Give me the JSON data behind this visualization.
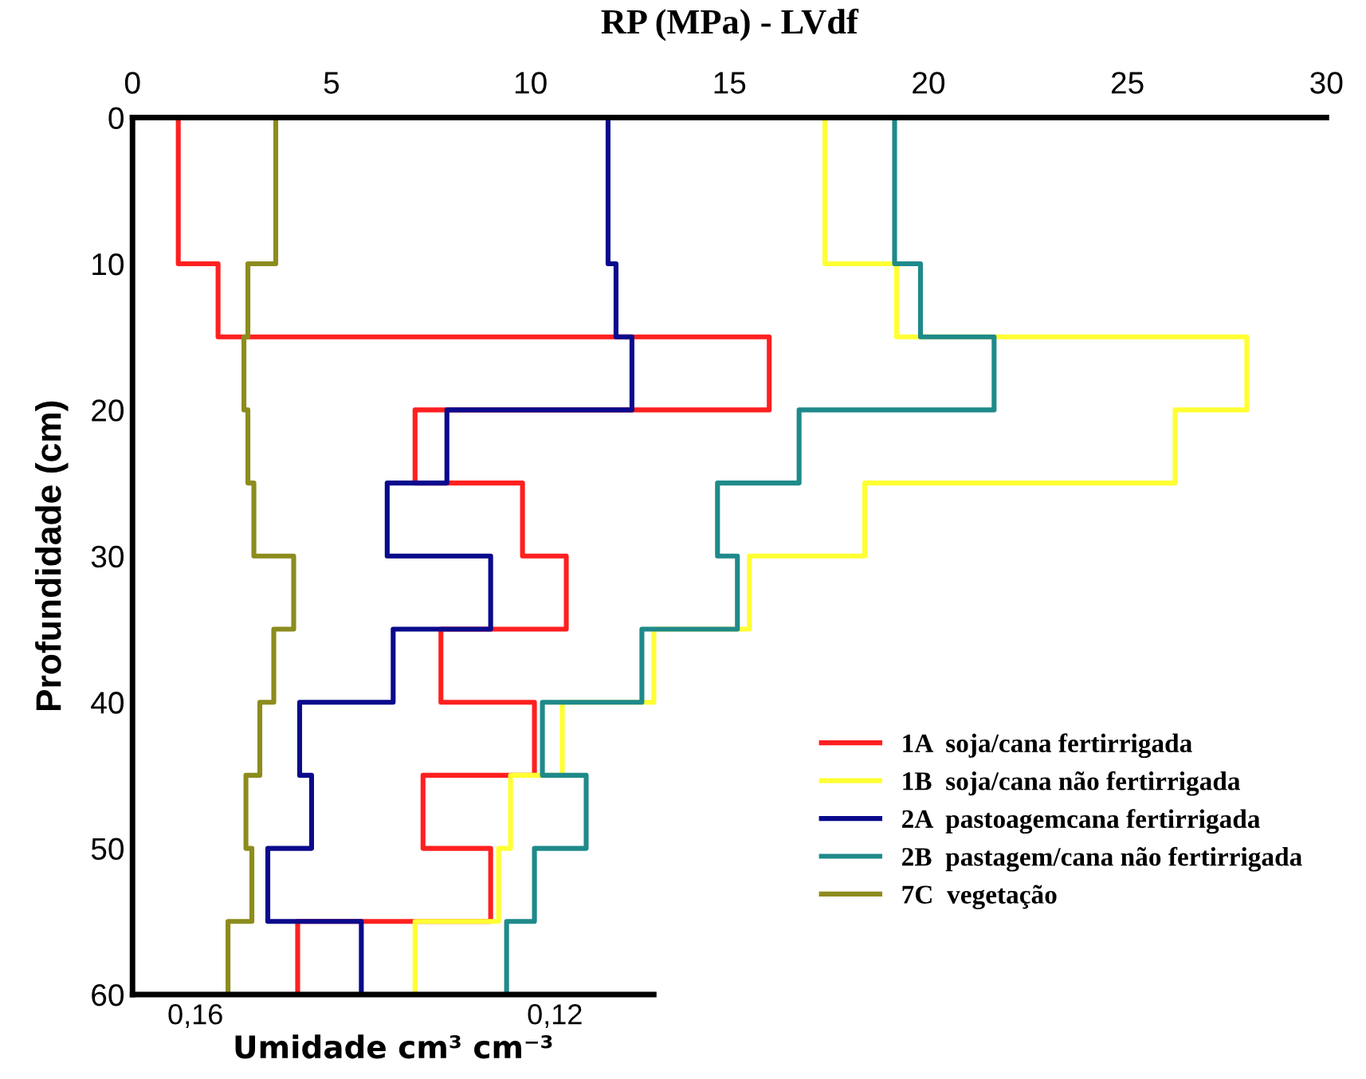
{
  "chart_data": {
    "type": "step",
    "orientation": "horizontal",
    "title": "RP (MPa) - LVdf",
    "ylabel": "Profundidade (cm)",
    "x2label": "Umidade cm³ cm⁻³",
    "x": [
      0,
      10,
      15,
      20,
      25,
      30,
      35,
      40,
      45,
      50,
      55,
      60
    ],
    "xlim": [
      0,
      30
    ],
    "xticks": [
      0,
      5,
      10,
      15,
      20,
      25,
      30
    ],
    "ylim": [
      60,
      0
    ],
    "yticks": [
      0,
      10,
      20,
      30,
      40,
      50,
      60
    ],
    "x2lim": [
      0.167,
      0.109
    ],
    "x2ticks": [
      {
        "value": 0.16,
        "label": "0,16"
      },
      {
        "value": 0.12,
        "label": "0,12"
      }
    ],
    "grid": false,
    "legend": "bottom right",
    "line_style": "solid",
    "marker": "none",
    "series": [
      {
        "name": "1A  soja/cana fertirrigada",
        "color": "#ff2020",
        "values": [
          1.15,
          2.15,
          16,
          7.1,
          9.8,
          10.9,
          7.75,
          10.1,
          7.3,
          9.0,
          4.15,
          4.15
        ]
      },
      {
        "name": "1B  soja/cana não fertirrigada",
        "color": "#ffff33",
        "values": [
          17.4,
          19.2,
          28.0,
          26.2,
          18.4,
          15.5,
          13.1,
          10.8,
          9.5,
          9.2,
          7.1,
          7.1
        ]
      },
      {
        "name": "2A  pastoagemcana fertirrigada",
        "color": "#0a0a8c",
        "values": [
          11.95,
          12.15,
          12.55,
          7.9,
          6.4,
          9.0,
          6.55,
          4.2,
          4.5,
          3.4,
          5.75,
          5.75
        ]
      },
      {
        "name": "2B  pastagem/cana não fertirrigada",
        "color": "#1f8a8a",
        "values": [
          19.15,
          19.8,
          21.65,
          16.75,
          14.7,
          15.2,
          12.8,
          10.3,
          11.4,
          10.1,
          9.4,
          9.4
        ]
      },
      {
        "name": "7C  vegetação",
        "color": "#8c8c1e",
        "values": [
          3.6,
          2.9,
          2.8,
          2.9,
          3.05,
          4.05,
          3.55,
          3.2,
          2.85,
          3.0,
          2.4,
          2.4
        ]
      }
    ]
  }
}
